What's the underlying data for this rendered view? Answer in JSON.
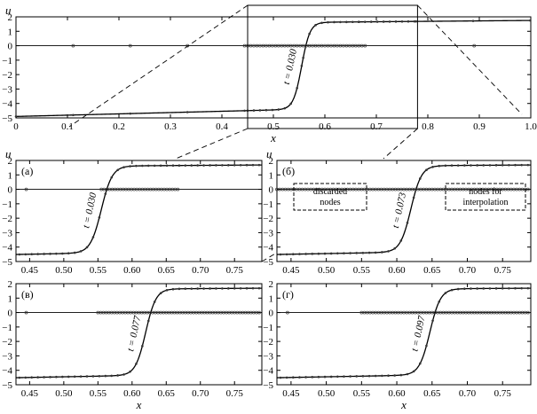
{
  "chart_data": [
    {
      "id": "main",
      "type": "line",
      "xlabel": "x",
      "ylabel": "u",
      "xlim": [
        0,
        1
      ],
      "ylim": [
        -5,
        2
      ],
      "xticks": [
        "0",
        "0.1",
        "0.2",
        "0.3",
        "0.4",
        "0.5",
        "0.6",
        "0.7",
        "0.8",
        "0.9",
        "1.0"
      ],
      "yticks": [
        "2",
        "1",
        "0",
        "−1",
        "−2",
        "−3",
        "−4",
        "−5"
      ],
      "curve_label": "t = 0.030",
      "front_center": 0.555,
      "front_width": 0.016,
      "zoom_window": [
        0.45,
        0.78
      ]
    },
    {
      "id": "a",
      "type": "line",
      "panel_label": "(а)",
      "ylabel": "u",
      "xlim": [
        0.43,
        0.79
      ],
      "ylim": [
        -5,
        2
      ],
      "xticks": [
        "0.45",
        "0.50",
        "0.55",
        "0.60",
        "0.65",
        "0.70",
        "0.75"
      ],
      "yticks": [
        "2",
        "1",
        "0",
        "−1",
        "−2",
        "−3",
        "−4",
        "−5"
      ],
      "curve_label": "t = 0.030",
      "front_center": 0.555,
      "front_width": 0.016,
      "dense_nodes_range": [
        0.555,
        0.668
      ]
    },
    {
      "id": "b",
      "type": "line",
      "panel_label": "(б)",
      "ylabel": "u",
      "xlim": [
        0.43,
        0.79
      ],
      "ylim": [
        -5,
        2
      ],
      "xticks": [
        "0.45",
        "0.50",
        "0.55",
        "0.60",
        "0.65",
        "0.70",
        "0.75"
      ],
      "yticks": [
        "2",
        "1",
        "0",
        "−1",
        "−2",
        "−3",
        "−4",
        "−5"
      ],
      "curve_label": "t = 0.073",
      "front_center": 0.62,
      "front_width": 0.015,
      "dense_nodes_range": [
        0.43,
        0.79
      ],
      "annotations": [
        "discarded nodes",
        "nodes for interpolation"
      ]
    },
    {
      "id": "v",
      "type": "line",
      "panel_label": "(в)",
      "xlabel": "x",
      "xlim": [
        0.43,
        0.79
      ],
      "ylim": [
        -5,
        2
      ],
      "xticks": [
        "0.45",
        "0.50",
        "0.55",
        "0.60",
        "0.65",
        "0.70",
        "0.75"
      ],
      "yticks": [
        "2",
        "1",
        "0",
        "−1",
        "−2",
        "−3",
        "−4",
        "−5"
      ],
      "curve_label": "t = 0.077",
      "front_center": 0.62,
      "front_width": 0.015,
      "dense_nodes_range": [
        0.55,
        0.79
      ]
    },
    {
      "id": "g",
      "type": "line",
      "panel_label": "(г)",
      "xlabel": "x",
      "xlim": [
        0.43,
        0.79
      ],
      "ylim": [
        -5,
        2
      ],
      "xticks": [
        "0.45",
        "0.50",
        "0.55",
        "0.60",
        "0.65",
        "0.70",
        "0.75"
      ],
      "yticks": [
        "2",
        "1",
        "0",
        "−1",
        "−2",
        "−3",
        "−4",
        "−5"
      ],
      "curve_label": "t = 0.097",
      "front_center": 0.647,
      "front_width": 0.015,
      "dense_nodes_range": [
        0.55,
        0.79
      ]
    }
  ]
}
